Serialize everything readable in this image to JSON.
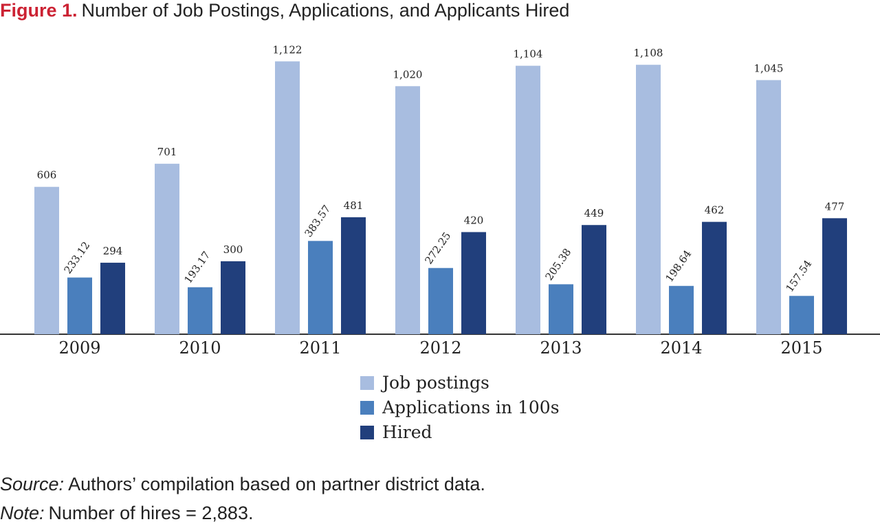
{
  "figure": {
    "label": "Figure 1.",
    "title": "Number of Job Postings, Applications, and Applicants Hired"
  },
  "chart_data": {
    "type": "bar",
    "categories": [
      "2009",
      "2010",
      "2011",
      "2012",
      "2013",
      "2014",
      "2015"
    ],
    "series": [
      {
        "name": "Job postings",
        "color": "#a8bde0",
        "values": [
          606,
          701,
          1122,
          1020,
          1104,
          1108,
          1045
        ],
        "labels": [
          "606",
          "701",
          "1,122",
          "1,020",
          "1,104",
          "1,108",
          "1,045"
        ]
      },
      {
        "name": "Applications in 100s",
        "color": "#4a7fbd",
        "values": [
          233.12,
          193.17,
          383.57,
          272.25,
          205.38,
          198.64,
          157.54
        ],
        "labels": [
          "233.12",
          "193.17",
          "383.57",
          "272.25",
          "205.38",
          "198.64",
          "157.54"
        ]
      },
      {
        "name": "Hired",
        "color": "#213f7c",
        "values": [
          294,
          300,
          481,
          420,
          449,
          462,
          477
        ],
        "labels": [
          "294",
          "300",
          "481",
          "420",
          "449",
          "462",
          "477"
        ]
      }
    ],
    "ylim": [
      0,
      1200
    ],
    "legend_position": "bottom-center",
    "grid": false
  },
  "footer": {
    "source_label": "Source:",
    "source_text": "Authors’ compilation based on partner district data.",
    "note_label": "Note:",
    "note_text": "Number of hires = 2,883."
  }
}
